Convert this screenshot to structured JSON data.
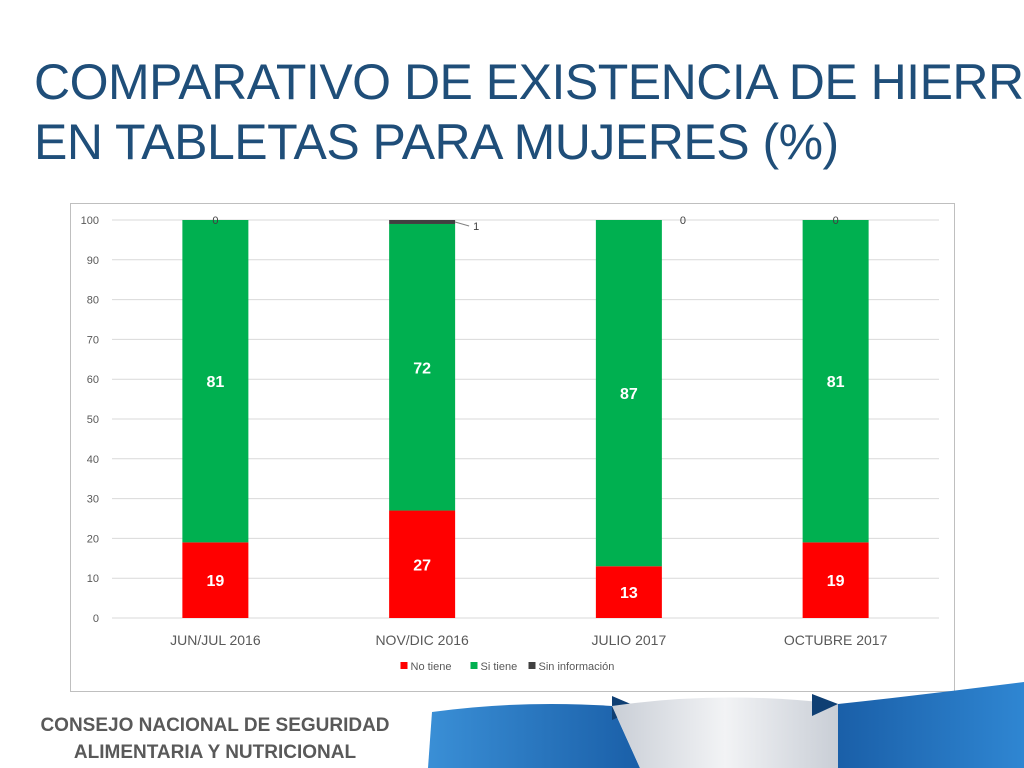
{
  "slide": {
    "title_line1": "COMPARATIVO DE EXISTENCIA DE HIERRO",
    "title_line2": "EN TABLETAS PARA MUJERES (%)",
    "footer_line1": "CONSEJO NACIONAL DE SEGURIDAD",
    "footer_line2": "ALIMENTARIA Y NUTRICIONAL"
  },
  "colors": {
    "title": "#1f4e79",
    "no_tiene": "#ff0000",
    "si_tiene": "#00b050",
    "sin_informacion": "#404040",
    "grid": "#d9d9d9",
    "decor_blue": "#1f6bb5",
    "decor_gray": "#d9dde3"
  },
  "chart_data": {
    "type": "bar",
    "stacked": true,
    "categories": [
      "JUN/JUL 2016",
      "NOV/DIC 2016",
      "JULIO 2017",
      "OCTUBRE 2017"
    ],
    "series": [
      {
        "name": "No tiene",
        "values": [
          19,
          27,
          13,
          19
        ]
      },
      {
        "name": "Si tiene",
        "values": [
          81,
          72,
          87,
          81
        ]
      },
      {
        "name": "Sin información",
        "values": [
          0,
          1,
          0,
          0
        ]
      }
    ],
    "ylim": [
      0,
      100
    ],
    "yticks": [
      0,
      10,
      20,
      30,
      40,
      50,
      60,
      70,
      80,
      90,
      100
    ],
    "grid": true,
    "legend_position": "bottom"
  }
}
